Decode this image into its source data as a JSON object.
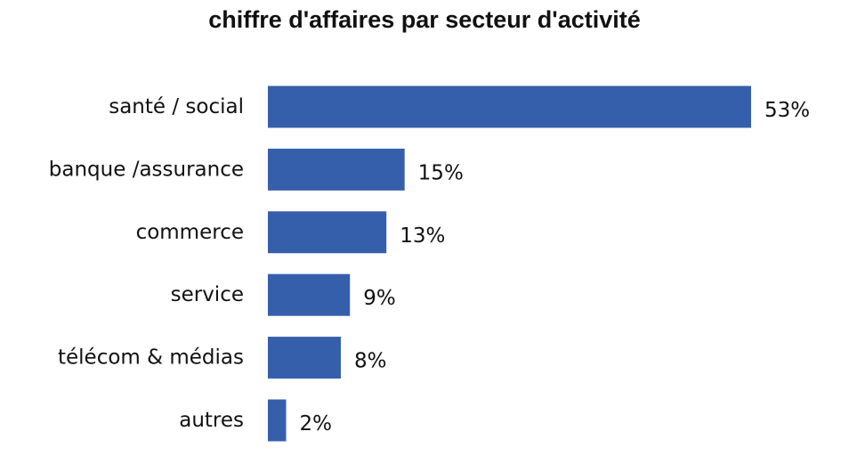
{
  "chart_data": {
    "type": "bar",
    "orientation": "horizontal",
    "title": "chiffre d'affaires par secteur d'activité",
    "categories": [
      "santé / social",
      "banque /assurance",
      "commerce",
      "service",
      "télécom & médias",
      "autres"
    ],
    "values": [
      53,
      15,
      13,
      9,
      8,
      2
    ],
    "value_labels": [
      "53%",
      "15%",
      "13%",
      "9%",
      "8%",
      "2%"
    ],
    "unit": "%",
    "xlim": [
      0,
      53
    ],
    "grid": false,
    "legend": "none",
    "bar_color": "#365FAB",
    "text_color": "#111111"
  }
}
